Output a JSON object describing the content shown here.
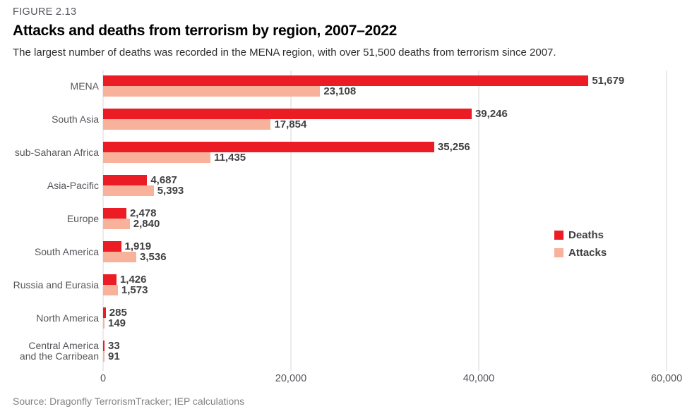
{
  "figure_label": "FIGURE 2.13",
  "title": "Attacks and deaths from terrorism by region, 2007–2022",
  "subtitle": "The largest number of deaths was recorded in the MENA region, with over 51,500 deaths from terrorism since 2007.",
  "source": "Source: Dragonfly TerrorismTracker; IEP calculations",
  "colors": {
    "deaths": "#EC1C24",
    "attacks": "#F8B29B",
    "value_label": "#414042",
    "axis_text": "#54565B",
    "gridline": "#D7D7D9"
  },
  "chart_data": {
    "type": "bar",
    "orientation": "horizontal",
    "title": "Attacks and deaths from terrorism by region, 2007–2022",
    "categories": [
      "MENA",
      "South Asia",
      "sub-Saharan Africa",
      "Asia-Pacific",
      "Europe",
      "South America",
      "Russia and Eurasia",
      "North America",
      "Central America and the Carribean"
    ],
    "category_display": [
      "MENA",
      "South Asia",
      "sub-Saharan Africa",
      "Asia-Pacific",
      "Europe",
      "South America",
      "Russia and Eurasia",
      "North America",
      "Central America\nand the Carribean"
    ],
    "series": [
      {
        "name": "Deaths",
        "color": "#EC1C24",
        "values": [
          51679,
          39246,
          35256,
          4687,
          2478,
          1919,
          1426,
          285,
          33
        ]
      },
      {
        "name": "Attacks",
        "color": "#F8B29B",
        "values": [
          23108,
          17854,
          11435,
          5393,
          2840,
          3536,
          1573,
          149,
          91
        ]
      }
    ],
    "xlim": [
      0,
      60000
    ],
    "xticks": [
      0,
      20000,
      40000,
      60000
    ],
    "grid": true,
    "legend_position": "right"
  }
}
